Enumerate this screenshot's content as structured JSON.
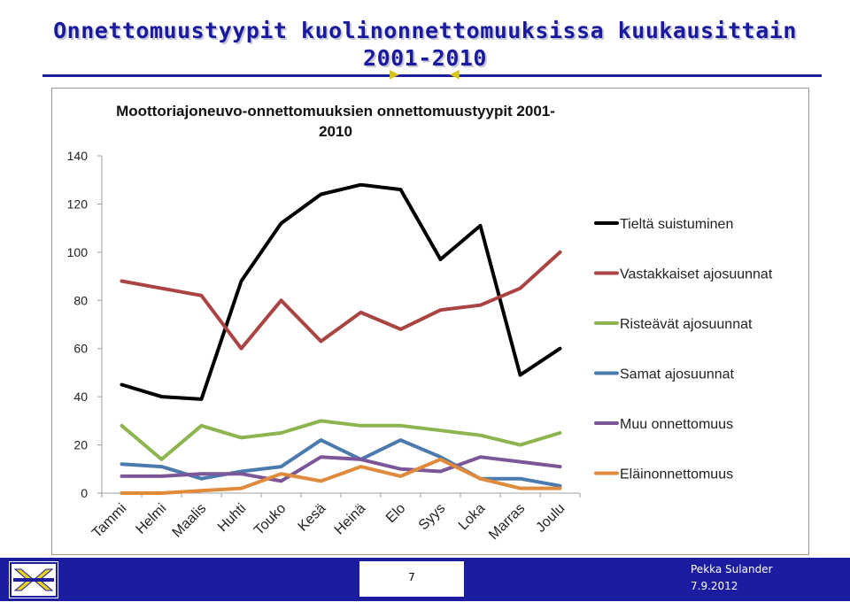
{
  "slide": {
    "title_line1": "Onnettomuustyypit kuolinonnettomuuksissa kuukausittain",
    "title_line2": "2001-2010",
    "page_number": "7",
    "author": "Pekka Sulander",
    "date": "7.9.2012"
  },
  "colors": {
    "title": "#1a1a9e",
    "footer": "#1c1ca0",
    "logo_yellow": "#e8d21a"
  },
  "chart_data": {
    "type": "line",
    "title_line1": "Moottoriajoneuvo-onnettomuuksien onnettomuustyypit 2001-",
    "title_line2": "2010",
    "xlabel": "",
    "ylabel": "",
    "ylim": [
      0,
      140
    ],
    "yticks": [
      "0",
      "20",
      "40",
      "60",
      "80",
      "100",
      "120",
      "140"
    ],
    "grid": false,
    "legend_position": "right",
    "categories": [
      "Tammi",
      "Helmi",
      "Maalis",
      "Huhti",
      "Touko",
      "Kesä",
      "Heinä",
      "Elo",
      "Syys",
      "Loka",
      "Marras",
      "Joulu"
    ],
    "series": [
      {
        "name": "Tieltä suistuminen",
        "color": "#000000",
        "values": [
          45,
          40,
          39,
          88,
          112,
          124,
          128,
          126,
          97,
          111,
          49,
          60
        ]
      },
      {
        "name": "Vastakkaiset ajosuunnat",
        "color": "#a94442",
        "values": [
          88,
          85,
          82,
          60,
          80,
          63,
          75,
          68,
          76,
          78,
          85,
          100
        ]
      },
      {
        "name": "Risteävät ajosuunnat",
        "color": "#8db44f",
        "values": [
          28,
          14,
          28,
          23,
          25,
          30,
          28,
          28,
          26,
          24,
          20,
          25
        ]
      },
      {
        "name": "Samat ajosuunnat",
        "color": "#4a7aae",
        "values": [
          12,
          11,
          6,
          9,
          11,
          22,
          14,
          22,
          15,
          6,
          6,
          3
        ]
      },
      {
        "name": "Muu onnettomuus",
        "color": "#7b5799",
        "values": [
          7,
          7,
          8,
          8,
          5,
          15,
          14,
          10,
          9,
          15,
          13,
          11
        ]
      },
      {
        "name": "Eläinonnettomuus",
        "color": "#e08a3c",
        "values": [
          0,
          0,
          1,
          2,
          8,
          5,
          11,
          7,
          14,
          6,
          2,
          2
        ]
      }
    ]
  }
}
